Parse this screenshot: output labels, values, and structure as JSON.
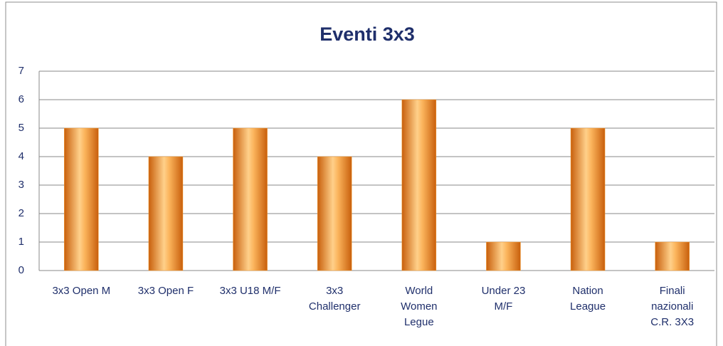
{
  "chart_data": {
    "type": "bar",
    "title": "Eventi 3x3",
    "categories": [
      "3x3 Open M",
      "3x3 Open F",
      "3x3 U18 M/F",
      "3x3\nChallenger",
      "World\nWomen\nLegue",
      "Under 23\nM/F",
      "Nation\nLeague",
      "Finali\nnazionali\nC.R. 3X3"
    ],
    "values": [
      5,
      4,
      5,
      4,
      6,
      1,
      5,
      1
    ],
    "color": "#f39a2e",
    "ylim": [
      0,
      7
    ],
    "yticks": [
      0,
      1,
      2,
      3,
      4,
      5,
      6,
      7
    ],
    "grid": true
  }
}
